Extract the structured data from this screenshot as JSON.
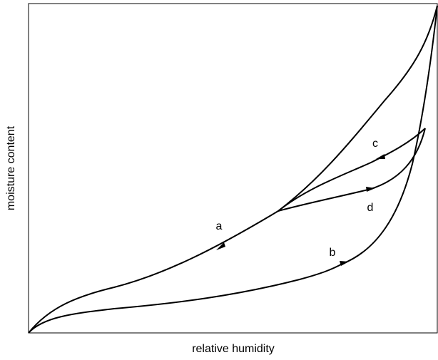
{
  "axes": {
    "x_label": "relative humidity",
    "y_label": "moisture content"
  },
  "curves": [
    {
      "label": "a"
    },
    {
      "label": "b"
    },
    {
      "label": "c"
    },
    {
      "label": "d"
    }
  ]
}
